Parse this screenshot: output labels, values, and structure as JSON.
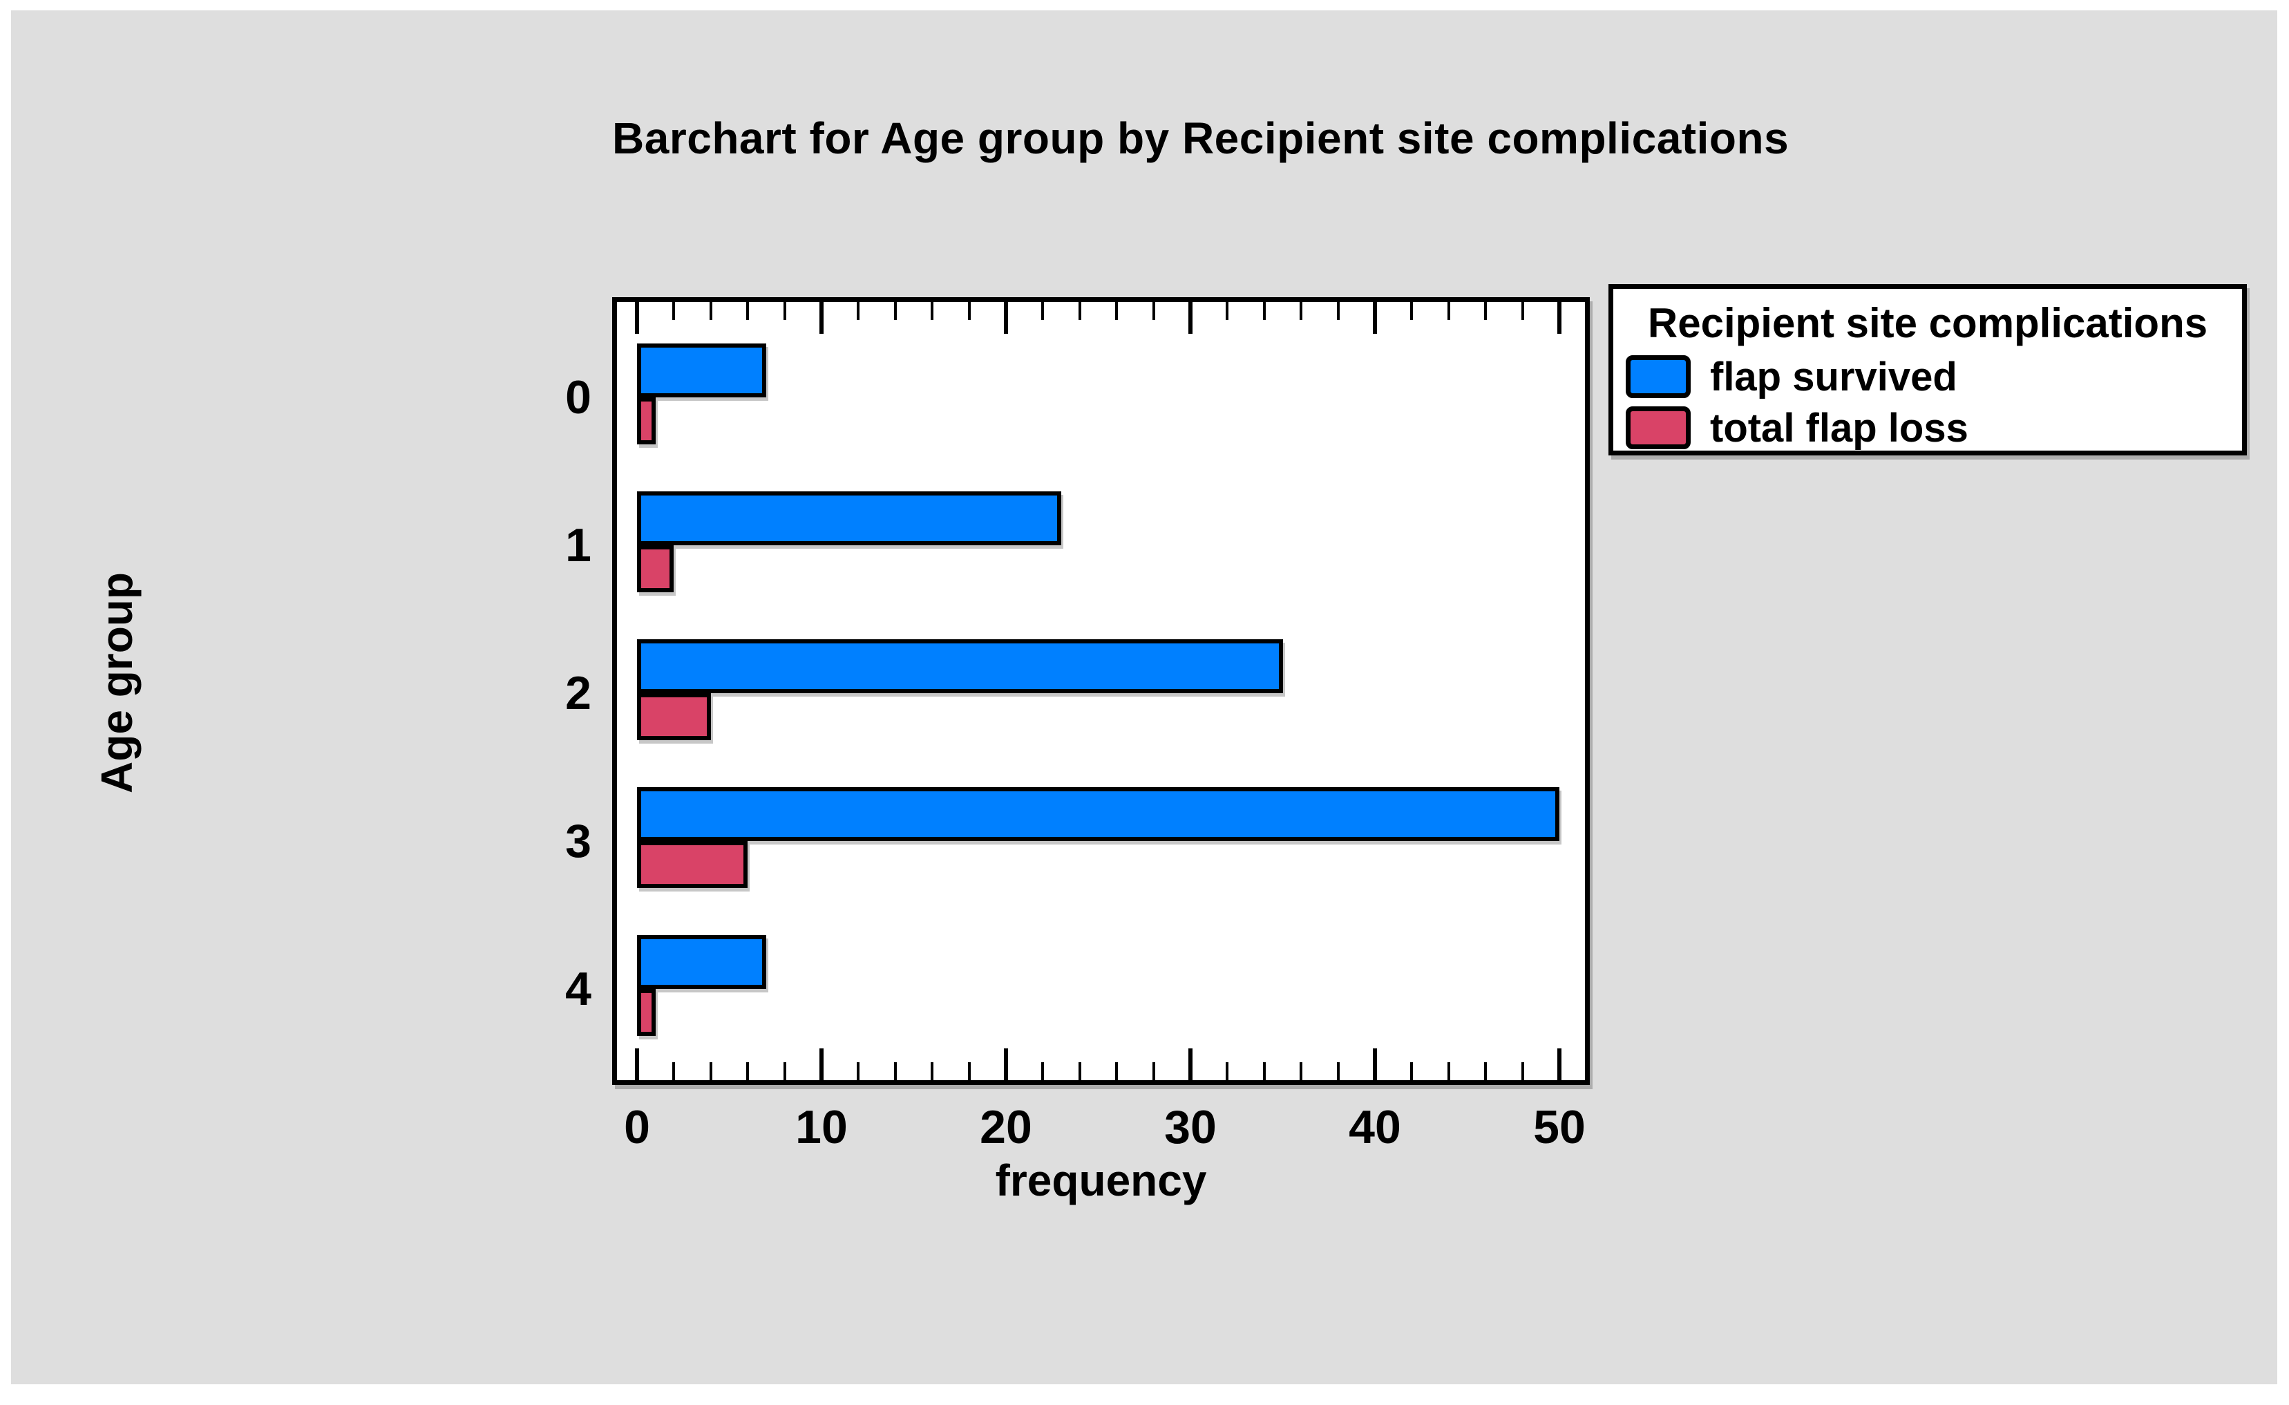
{
  "page": {
    "background_color": "#ffffff",
    "panel_color": "#dedede",
    "text_color": "#000000"
  },
  "chart_data": {
    "type": "bar",
    "orientation": "horizontal",
    "title": "Barchart for Age group by Recipient site complications",
    "xlabel": "frequency",
    "ylabel": "Age group",
    "categories": [
      "0",
      "1",
      "2",
      "3",
      "4"
    ],
    "series": [
      {
        "name": "flap survived",
        "color": "#0080FF",
        "values": [
          7,
          23,
          35,
          50,
          7
        ]
      },
      {
        "name": "total flap loss",
        "color": "#D94367",
        "values": [
          1,
          2,
          4,
          6,
          1
        ]
      }
    ],
    "x_axis": {
      "min": 0,
      "max": 50,
      "major_tick_step": 10,
      "minor_tick_step": 2,
      "tick_labels": [
        "0",
        "10",
        "20",
        "30",
        "40",
        "50"
      ],
      "ticks_inside": true,
      "ticks_on_top_and_bottom": true
    },
    "xlim": [
      -1.1,
      51.3
    ],
    "grid": false,
    "legend": {
      "title": "Recipient site complications",
      "position": "outside-top-right"
    },
    "bar_border_color": "#000000",
    "plot_background": "#ffffff"
  }
}
